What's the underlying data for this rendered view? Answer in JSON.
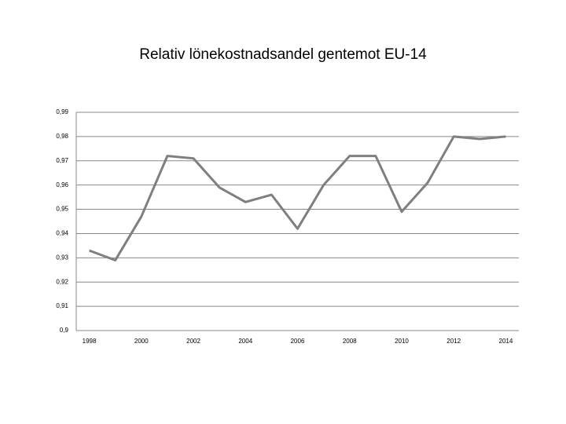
{
  "chart_data": {
    "type": "line",
    "title": "Relativ lönekostnadsandel gentemot EU-14",
    "categories": [
      "1998",
      null,
      "2000",
      null,
      "2002",
      null,
      "2004",
      null,
      "2006",
      null,
      "2008",
      null,
      "2010",
      null,
      "2012",
      null,
      "2014"
    ],
    "series": [
      {
        "name": null,
        "color": "#7f7f7f",
        "values": [
          0.933,
          0.929,
          0.947,
          0.972,
          0.971,
          0.959,
          0.953,
          0.956,
          0.942,
          0.96,
          0.972,
          0.972,
          0.949,
          0.961,
          0.98,
          0.979,
          0.98
        ]
      }
    ],
    "ylim": [
      0.9,
      0.99
    ],
    "yticks": [
      {
        "value": 0.9,
        "label": "0,9"
      },
      {
        "value": 0.91,
        "label": "0,91"
      },
      {
        "value": 0.92,
        "label": "0,92"
      },
      {
        "value": 0.93,
        "label": "0,93"
      },
      {
        "value": 0.94,
        "label": "0,94"
      },
      {
        "value": 0.95,
        "label": "0,95"
      },
      {
        "value": 0.96,
        "label": "0,96"
      },
      {
        "value": 0.97,
        "label": "0,97"
      },
      {
        "value": 0.98,
        "label": "0,98"
      },
      {
        "value": 0.99,
        "label": "0,99"
      }
    ],
    "grid": true
  }
}
